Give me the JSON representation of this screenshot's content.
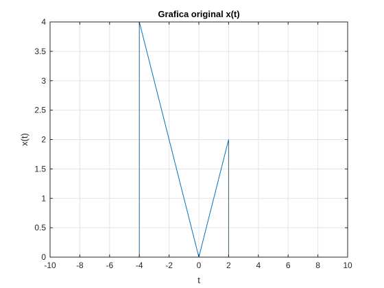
{
  "chart_data": {
    "type": "line",
    "title": "Grafica original x(t)",
    "xlabel": "t",
    "ylabel": "x(t)",
    "xlim": [
      -10,
      10
    ],
    "ylim": [
      0,
      4
    ],
    "xticks": [
      -10,
      -8,
      -6,
      -4,
      -2,
      0,
      2,
      4,
      6,
      8,
      10
    ],
    "yticks": [
      0,
      0.5,
      1,
      1.5,
      2,
      2.5,
      3,
      3.5,
      4
    ],
    "grid": true,
    "series": [
      {
        "color": "#0072BD",
        "x": [
          -10,
          -4,
          -4,
          0,
          2,
          2,
          10
        ],
        "y": [
          0,
          0,
          4,
          0,
          2,
          0,
          0
        ]
      }
    ]
  }
}
